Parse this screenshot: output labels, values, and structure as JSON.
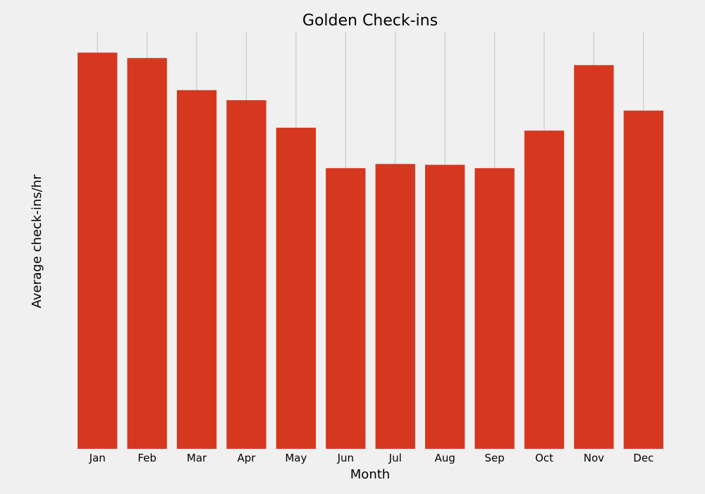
{
  "chart_data": {
    "type": "bar",
    "title": "Golden Check-ins",
    "xlabel": "Month",
    "ylabel": "Average check-ins/hr",
    "categories": [
      "Jan",
      "Feb",
      "Mar",
      "Apr",
      "May",
      "Jun",
      "Jul",
      "Aug",
      "Sep",
      "Oct",
      "Nov",
      "Dec"
    ],
    "values": [
      9.5,
      9.37,
      8.6,
      8.36,
      7.7,
      6.73,
      6.83,
      6.81,
      6.73,
      7.63,
      9.2,
      8.11
    ],
    "ylim": [
      0,
      10
    ],
    "grid": "vertical",
    "color": "#d5381f"
  }
}
